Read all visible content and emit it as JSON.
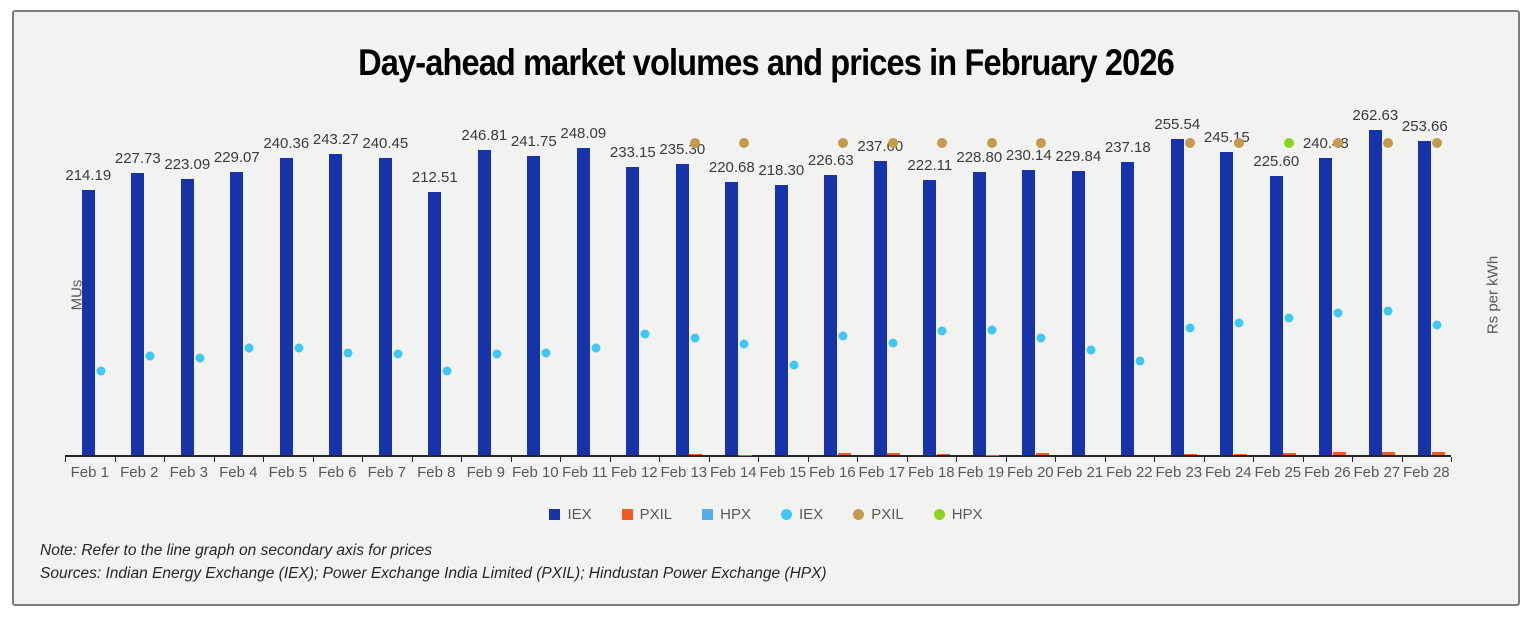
{
  "title": "Day-ahead market volumes and prices in February 2026",
  "left_axis_label": "MUs",
  "right_axis_label": "Rs per kWh",
  "note": "Note: Refer to the line graph on secondary axis for prices",
  "sources": "Sources: Indian Energy Exchange (IEX); Power Exchange India Limited (PXIL); Hindustan Power Exchange (HPX)",
  "colors": {
    "iex_bar": "#1733a9",
    "pxil_bar": "#f15a22",
    "hpx_bar": "#56ade8",
    "iex_dot": "#41c7f4",
    "pxil_dot": "#c49a4e",
    "hpx_dot": "#8cd41f",
    "background": "#f2f2f0",
    "axis": "#262626"
  },
  "legend": [
    {
      "label": "IEX",
      "shape": "square",
      "color": "#1733a9"
    },
    {
      "label": "PXIL",
      "shape": "square",
      "color": "#f15a22"
    },
    {
      "label": "HPX",
      "shape": "square",
      "color": "#56ade8"
    },
    {
      "label": "IEX",
      "shape": "circle",
      "color": "#41c7f4"
    },
    {
      "label": "PXIL",
      "shape": "circle",
      "color": "#c49a4e"
    },
    {
      "label": "HPX",
      "shape": "circle",
      "color": "#8cd41f"
    }
  ],
  "chart_data": {
    "type": "bar",
    "combo": "bars (volumes, primary axis) + scatter markers (prices, secondary axis)",
    "title": "Day-ahead market volumes and prices in February 2026",
    "xlabel": "",
    "ylabel": "MUs",
    "y2label": "Rs per kWh",
    "ylim": [
      0,
      287
    ],
    "y2lim": [
      0,
      10
    ],
    "grid": false,
    "legend_position": "bottom",
    "axis_ticks_labeled": false,
    "estimation_note": "Neither value axis shows tick numbers; price and PXIL-volume values are estimated from marker/bar pixel positions. IEX volume values are taken from printed data labels.",
    "categories": [
      "Feb 1",
      "Feb 2",
      "Feb 3",
      "Feb 4",
      "Feb 5",
      "Feb 6",
      "Feb 7",
      "Feb 8",
      "Feb 9",
      "Feb 10",
      "Feb 11",
      "Feb 12",
      "Feb 13",
      "Feb 14",
      "Feb 15",
      "Feb 16",
      "Feb 17",
      "Feb 18",
      "Feb 19",
      "Feb 20",
      "Feb 21",
      "Feb 22",
      "Feb 23",
      "Feb 24",
      "Feb 25",
      "Feb 26",
      "Feb 27",
      "Feb 28"
    ],
    "series": [
      {
        "name": "IEX",
        "kind": "bar",
        "axis": "primary",
        "color": "#1733a9",
        "data_labels": true,
        "values": [
          214.19,
          227.73,
          223.09,
          229.07,
          240.36,
          243.27,
          240.45,
          212.51,
          246.81,
          241.75,
          248.09,
          233.15,
          235.3,
          220.68,
          218.3,
          226.63,
          237.6,
          222.11,
          228.8,
          230.14,
          229.84,
          237.18,
          255.54,
          245.15,
          225.6,
          240.48,
          262.63,
          253.66
        ],
        "labels": [
          "214.19",
          "227.73",
          "223.09",
          "229.07",
          "240.36",
          "243.27",
          "240.45",
          "212.51",
          "246.81",
          "241.75",
          "248.09",
          "233.15",
          "235.30",
          "220.68",
          "218.30",
          "226.63",
          "237.60",
          "222.11",
          "228.80",
          "230.14",
          "229.84",
          "237.18",
          "255.54",
          "245.15",
          "225.60",
          "240.48",
          "262.63",
          "253.66"
        ]
      },
      {
        "name": "PXIL",
        "kind": "bar",
        "axis": "primary",
        "color": "#f15a22",
        "data_labels": false,
        "values": [
          0,
          0,
          0,
          0,
          0,
          0,
          0,
          0,
          0,
          0,
          0,
          0,
          0.5,
          0.4,
          0,
          1.3,
          1.3,
          0.6,
          0.4,
          1.3,
          0,
          0,
          1.0,
          0.8,
          1.5,
          2.1,
          2.6,
          2.3
        ]
      },
      {
        "name": "HPX",
        "kind": "bar",
        "axis": "primary",
        "color": "#56ade8",
        "data_labels": false,
        "values": [
          0,
          0,
          0,
          0,
          0,
          0,
          0,
          0,
          0,
          0,
          0,
          0,
          0,
          0,
          0,
          0,
          0,
          0,
          0,
          0,
          0,
          0,
          0,
          0,
          0,
          0,
          0,
          0
        ]
      },
      {
        "name": "IEX",
        "kind": "scatter",
        "axis": "secondary",
        "color": "#41c7f4",
        "marker": 9,
        "values": [
          2.37,
          2.79,
          2.73,
          3.01,
          3.01,
          2.87,
          2.85,
          2.37,
          2.85,
          2.87,
          3.01,
          3.41,
          3.3,
          3.13,
          2.54,
          3.35,
          3.15,
          3.49,
          3.52,
          3.3,
          2.96,
          2.65,
          3.58,
          3.72,
          3.86,
          4.0,
          4.06,
          3.66
        ]
      },
      {
        "name": "PXIL",
        "kind": "scatter",
        "axis": "secondary",
        "color": "#c49a4e",
        "marker": 10,
        "values": [
          null,
          null,
          null,
          null,
          null,
          null,
          null,
          null,
          null,
          null,
          null,
          null,
          8.8,
          8.8,
          null,
          8.8,
          8.8,
          8.8,
          8.8,
          8.8,
          null,
          null,
          8.8,
          8.8,
          null,
          8.8,
          8.8,
          8.8
        ]
      },
      {
        "name": "HPX",
        "kind": "scatter",
        "axis": "secondary",
        "color": "#8cd41f",
        "marker": 10,
        "values": [
          null,
          null,
          null,
          null,
          null,
          null,
          null,
          null,
          null,
          null,
          null,
          null,
          null,
          null,
          null,
          null,
          null,
          null,
          null,
          null,
          null,
          null,
          null,
          null,
          8.8,
          null,
          null,
          null
        ]
      }
    ]
  }
}
